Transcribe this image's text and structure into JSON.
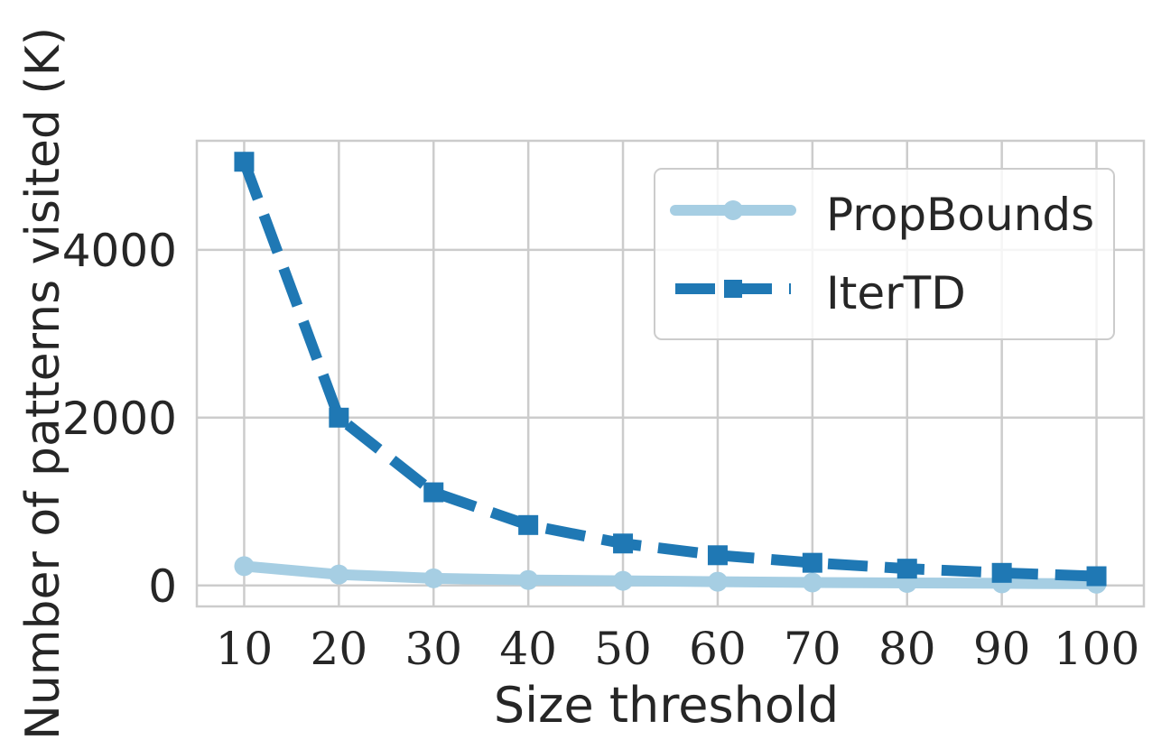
{
  "chart_data": {
    "type": "line",
    "title": "",
    "xlabel": "Size threshold",
    "ylabel": "Number of patterns visited (K)",
    "x": [
      10,
      20,
      30,
      40,
      50,
      60,
      70,
      80,
      90,
      100
    ],
    "xlim": [
      5,
      105
    ],
    "ylim": [
      -250,
      5300
    ],
    "y_ticks": [
      0,
      2000,
      4000
    ],
    "x_ticks": [
      10,
      20,
      30,
      40,
      50,
      60,
      70,
      80,
      90,
      100
    ],
    "grid": true,
    "legend_position": "top-right",
    "series": [
      {
        "name": "PropBounds",
        "values": [
          230,
          130,
          85,
          65,
          55,
          45,
          35,
          30,
          25,
          20
        ],
        "color": "#a6cee3",
        "line_style": "solid",
        "marker": "circle"
      },
      {
        "name": "IterTD",
        "values": [
          5050,
          2000,
          1110,
          720,
          500,
          360,
          270,
          200,
          150,
          110
        ],
        "color": "#1f78b4",
        "line_style": "dashed",
        "marker": "square"
      }
    ]
  }
}
